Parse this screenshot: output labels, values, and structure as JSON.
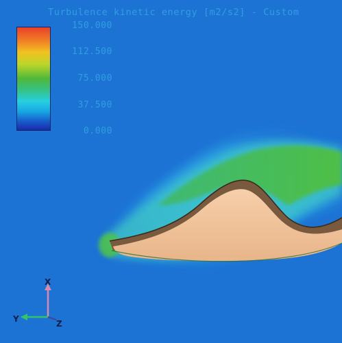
{
  "legend": {
    "title": "Turbulence kinetic energy [m2/s2] - Custom",
    "ticks": [
      "150.000",
      "112.500",
      "75.000",
      "37.500",
      "0.000"
    ],
    "range": [
      0,
      150
    ],
    "gradient_colors": [
      "#e8412a",
      "#f2c021",
      "#4fb83a",
      "#27cfe0",
      "#1758c9",
      "#1b2aa8"
    ]
  },
  "axes": {
    "x_label": "X",
    "y_label": "Y",
    "z_label": "Z",
    "x_color": "#d98ab0",
    "y_color": "#35c36a",
    "z_color": "#3c4aa0"
  },
  "scene": {
    "background_color": "#1d73d4",
    "body_color": "#f2c49b",
    "shadow_color": "#7a5a3e"
  }
}
